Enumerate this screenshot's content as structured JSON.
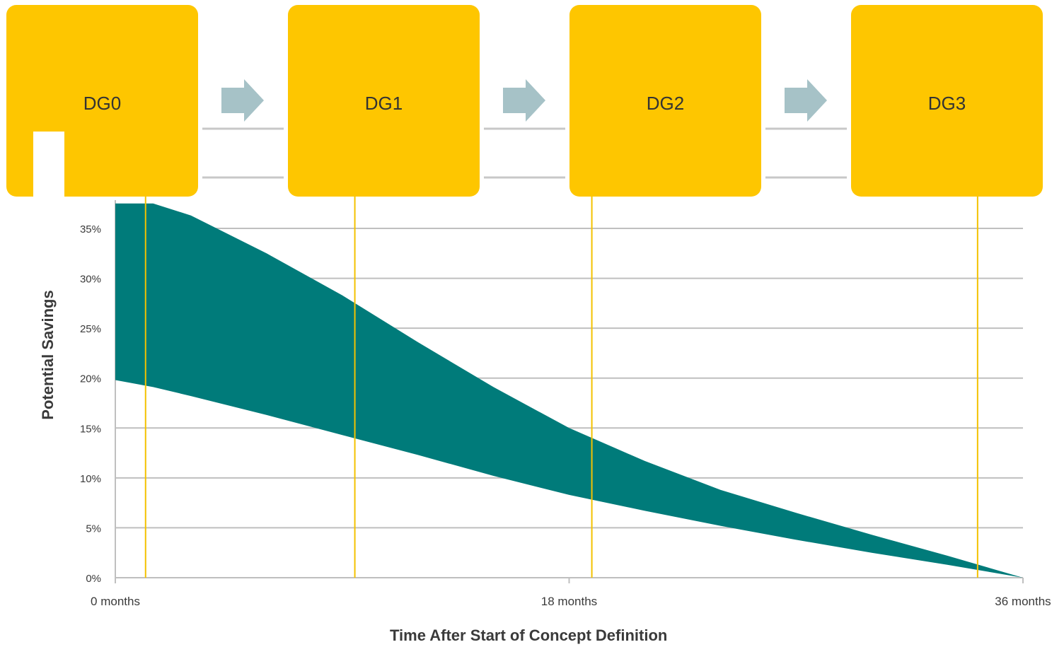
{
  "colors": {
    "gate": "#fec600",
    "band": "#007b7a",
    "arrow": "#a6c2c7",
    "gridline": "#bfbfbf",
    "gate_line": "#f3c200",
    "connector": "#c8c8c8",
    "tick_text": "#3a3a3a"
  },
  "gates": [
    {
      "label": "DG0",
      "x_month": 1.2
    },
    {
      "label": "DG1",
      "x_month": 9.5
    },
    {
      "label": "DG2",
      "x_month": 18.9
    },
    {
      "label": "DG3",
      "x_month": 34.2
    }
  ],
  "chart_data": {
    "type": "area",
    "xlabel": "Time After Start of Concept Definition",
    "ylabel": "Potential Savings",
    "xlim": [
      0,
      36
    ],
    "ylim": [
      0,
      35
    ],
    "x_ticks": [
      {
        "value": 0,
        "label": "0 months"
      },
      {
        "value": 18,
        "label": "18 months"
      },
      {
        "value": 36,
        "label": "36 months"
      }
    ],
    "y_ticks": [
      {
        "value": 0,
        "label": "0%"
      },
      {
        "value": 5,
        "label": "5%"
      },
      {
        "value": 10,
        "label": "10%"
      },
      {
        "value": 15,
        "label": "15%"
      },
      {
        "value": 20,
        "label": "20%"
      },
      {
        "value": 25,
        "label": "25%"
      },
      {
        "value": 30,
        "label": "30%"
      },
      {
        "value": 35,
        "label": "35%"
      }
    ],
    "grid": true,
    "series": [
      {
        "role": "upper bound",
        "x": [
          0,
          1.5,
          3,
          6,
          9,
          12,
          15,
          18,
          21,
          24,
          27,
          30,
          33,
          36
        ],
        "y": [
          37.5,
          37.5,
          36.3,
          32.5,
          28.3,
          23.6,
          19.1,
          15.0,
          11.7,
          8.8,
          6.5,
          4.3,
          2.2,
          0
        ]
      },
      {
        "role": "lower bound",
        "x": [
          0,
          1.5,
          3,
          6,
          9,
          12,
          15,
          18,
          21,
          24,
          27,
          30,
          33,
          36
        ],
        "y": [
          19.8,
          19.1,
          18.2,
          16.3,
          14.3,
          12.3,
          10.2,
          8.3,
          6.7,
          5.2,
          3.8,
          2.5,
          1.3,
          0
        ]
      }
    ]
  }
}
